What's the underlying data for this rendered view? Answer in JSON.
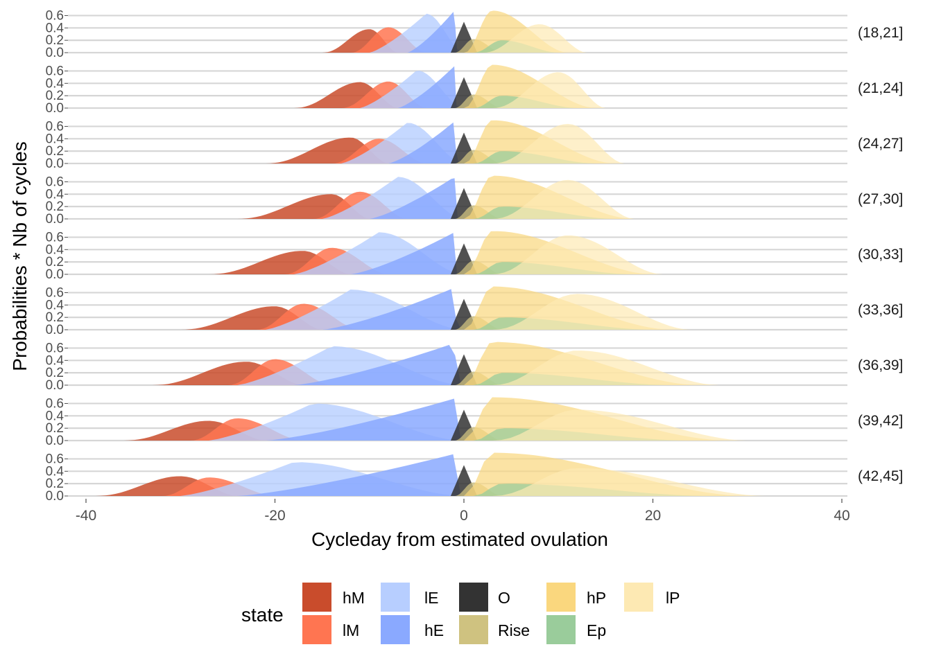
{
  "chart_data": {
    "type": "area",
    "subtype": "faceted-density",
    "xlabel": "Cycleday from estimated ovulation",
    "ylabel": "Probabilities * Nb of cycles",
    "xlim": [
      -40,
      40
    ],
    "x_ticks": [
      -40,
      -20,
      0,
      20,
      40
    ],
    "x_tick_labels": [
      "-40",
      "-20",
      "0",
      "20",
      "40"
    ],
    "ylim": [
      0,
      0.65
    ],
    "y_ticks": [
      0.0,
      0.2,
      0.4,
      0.6
    ],
    "y_tick_labels": [
      "0.0",
      "0.2",
      "0.4",
      "0.6"
    ],
    "grid": "horizontal",
    "legend": {
      "title": "state",
      "placement": "bottom",
      "entries": [
        {
          "key": "hM",
          "label": "hM",
          "color": "#C94C2C"
        },
        {
          "key": "lM",
          "label": "lM",
          "color": "#FF7551"
        },
        {
          "key": "lE",
          "label": "lE",
          "color": "#B7CEFF"
        },
        {
          "key": "hE",
          "label": "hE",
          "color": "#8AA9FF"
        },
        {
          "key": "O",
          "label": "O",
          "color": "#333333"
        },
        {
          "key": "Rise",
          "label": "Rise",
          "color": "#CFC280"
        },
        {
          "key": "hP",
          "label": "hP",
          "color": "#FAD77E"
        },
        {
          "key": "Ep",
          "label": "Ep",
          "color": "#9ACC9B"
        },
        {
          "key": "lP",
          "label": "lP",
          "color": "#FDE9B3"
        }
      ]
    },
    "panels": [
      {
        "label": "(18,21]",
        "peaks": {
          "hM": [
            -10,
            0.38,
            -15,
            -7,
            0.85
          ],
          "lM": [
            -8,
            0.41,
            -12,
            -4,
            0.85
          ],
          "lE": [
            -4,
            0.63,
            -10,
            0,
            0.8
          ],
          "hE": [
            -1,
            0.68,
            -6,
            -0.3,
            0.85
          ],
          "O": [
            0,
            0.5,
            -1.4,
            1.4,
            0.85
          ],
          "Rise": [
            1,
            0.22,
            -1,
            4,
            0.75
          ],
          "hP": [
            3,
            0.68,
            0,
            11,
            0.7
          ],
          "Ep": [
            4,
            0.2,
            1,
            10,
            0.75
          ],
          "lP": [
            8,
            0.46,
            2,
            13,
            0.7
          ]
        }
      },
      {
        "label": "(21,24]",
        "peaks": {
          "hM": [
            -11,
            0.42,
            -18,
            -7,
            0.85
          ],
          "lM": [
            -8,
            0.43,
            -13,
            -4,
            0.85
          ],
          "lE": [
            -5,
            0.61,
            -11,
            0,
            0.8
          ],
          "hE": [
            -1,
            0.68,
            -7,
            -0.3,
            0.85
          ],
          "O": [
            0,
            0.5,
            -1.4,
            1.4,
            0.85
          ],
          "Rise": [
            1,
            0.22,
            -1,
            4,
            0.75
          ],
          "hP": [
            3,
            0.7,
            0,
            14,
            0.7
          ],
          "Ep": [
            4,
            0.2,
            1,
            12,
            0.75
          ],
          "lP": [
            10,
            0.58,
            3,
            15,
            0.7
          ]
        }
      },
      {
        "label": "(24,27]",
        "peaks": {
          "hM": [
            -12,
            0.42,
            -21,
            -8,
            0.85
          ],
          "lM": [
            -9,
            0.4,
            -14,
            -4,
            0.85
          ],
          "lE": [
            -6,
            0.66,
            -13,
            0,
            0.8
          ],
          "hE": [
            -1,
            0.68,
            -8,
            -0.3,
            0.85
          ],
          "O": [
            0,
            0.5,
            -1.4,
            1.4,
            0.85
          ],
          "Rise": [
            1,
            0.22,
            -1,
            4,
            0.75
          ],
          "hP": [
            3,
            0.7,
            0,
            16,
            0.7
          ],
          "Ep": [
            4,
            0.2,
            1,
            14,
            0.75
          ],
          "lP": [
            11,
            0.64,
            3,
            17,
            0.7
          ]
        }
      },
      {
        "label": "(27,30]",
        "peaks": {
          "hM": [
            -14,
            0.4,
            -24,
            -10,
            0.85
          ],
          "lM": [
            -11,
            0.44,
            -16,
            -6,
            0.85
          ],
          "lE": [
            -7,
            0.68,
            -15,
            0,
            0.8
          ],
          "hE": [
            -1,
            0.68,
            -10,
            -0.3,
            0.85
          ],
          "O": [
            0,
            0.5,
            -1.4,
            1.4,
            0.85
          ],
          "Rise": [
            1,
            0.22,
            -1,
            4,
            0.75
          ],
          "hP": [
            3,
            0.7,
            0,
            18,
            0.7
          ],
          "Ep": [
            4,
            0.2,
            1,
            16,
            0.75
          ],
          "lP": [
            11,
            0.63,
            3,
            18,
            0.7
          ]
        }
      },
      {
        "label": "(30,33]",
        "peaks": {
          "hM": [
            -17,
            0.38,
            -27,
            -12,
            0.85
          ],
          "lM": [
            -14,
            0.43,
            -19,
            -8,
            0.85
          ],
          "lE": [
            -9,
            0.68,
            -18,
            0,
            0.8
          ],
          "hE": [
            -1,
            0.68,
            -12,
            -0.3,
            0.85
          ],
          "O": [
            0,
            0.5,
            -1.4,
            1.4,
            0.85
          ],
          "Rise": [
            1,
            0.22,
            -1,
            4,
            0.75
          ],
          "hP": [
            3,
            0.7,
            0,
            20,
            0.7
          ],
          "Ep": [
            4,
            0.2,
            1,
            18,
            0.75
          ],
          "lP": [
            11,
            0.63,
            3,
            21,
            0.7
          ]
        }
      },
      {
        "label": "(33,36]",
        "peaks": {
          "hM": [
            -20,
            0.38,
            -30,
            -15,
            0.85
          ],
          "lM": [
            -17,
            0.42,
            -22,
            -11,
            0.85
          ],
          "lE": [
            -12,
            0.65,
            -21,
            0,
            0.8
          ],
          "hE": [
            -1,
            0.68,
            -15,
            -0.3,
            0.85
          ],
          "O": [
            0,
            0.5,
            -1.4,
            1.4,
            0.85
          ],
          "Rise": [
            1,
            0.22,
            -1,
            4,
            0.75
          ],
          "hP": [
            3,
            0.7,
            0,
            22,
            0.7
          ],
          "Ep": [
            4,
            0.2,
            1,
            20,
            0.75
          ],
          "lP": [
            12,
            0.58,
            3,
            24,
            0.7
          ]
        }
      },
      {
        "label": "(36,39]",
        "peaks": {
          "hM": [
            -23,
            0.38,
            -33,
            -17,
            0.85
          ],
          "lM": [
            -20,
            0.42,
            -25,
            -14,
            0.85
          ],
          "lE": [
            -14,
            0.63,
            -24,
            0,
            0.8
          ],
          "hE": [
            -1,
            0.68,
            -18,
            -0.3,
            0.85
          ],
          "O": [
            0,
            0.5,
            -1.4,
            1.4,
            0.85
          ],
          "Rise": [
            1,
            0.22,
            -1,
            4,
            0.75
          ],
          "hP": [
            3,
            0.7,
            0,
            25,
            0.7
          ],
          "Ep": [
            4,
            0.2,
            1,
            22,
            0.75
          ],
          "lP": [
            12,
            0.56,
            3,
            27,
            0.7
          ]
        }
      },
      {
        "label": "(39,42]",
        "peaks": {
          "hM": [
            -27,
            0.32,
            -36,
            -21,
            0.85
          ],
          "lM": [
            -24,
            0.36,
            -29,
            -17,
            0.85
          ],
          "lE": [
            -16,
            0.6,
            -27,
            0,
            0.8
          ],
          "hE": [
            -1,
            0.68,
            -21,
            -0.3,
            0.85
          ],
          "O": [
            0,
            0.5,
            -1.4,
            1.4,
            0.85
          ],
          "Rise": [
            1,
            0.22,
            -1,
            4,
            0.75
          ],
          "hP": [
            3,
            0.7,
            0,
            28,
            0.7
          ],
          "Ep": [
            4,
            0.2,
            1,
            24,
            0.75
          ],
          "lP": [
            12,
            0.5,
            3,
            30,
            0.7
          ]
        }
      },
      {
        "label": "(42,45]",
        "peaks": {
          "hM": [
            -30,
            0.32,
            -39,
            -24,
            0.85
          ],
          "lM": [
            -27,
            0.3,
            -32,
            -20,
            0.85
          ],
          "lE": [
            -18,
            0.55,
            -30,
            0,
            0.8
          ],
          "hE": [
            -1,
            0.68,
            -24,
            -0.3,
            0.85
          ],
          "O": [
            0,
            0.5,
            -1.4,
            1.4,
            0.85
          ],
          "Rise": [
            1,
            0.22,
            -1,
            4,
            0.75
          ],
          "hP": [
            3,
            0.7,
            0,
            30,
            0.7
          ],
          "Ep": [
            4,
            0.2,
            1,
            26,
            0.75
          ],
          "lP": [
            12,
            0.45,
            3,
            32,
            0.7
          ]
        }
      }
    ],
    "peaks_format": "[peak_x, peak_y, start_x, end_x, opacity] — approximate density shapes read from the figure"
  }
}
